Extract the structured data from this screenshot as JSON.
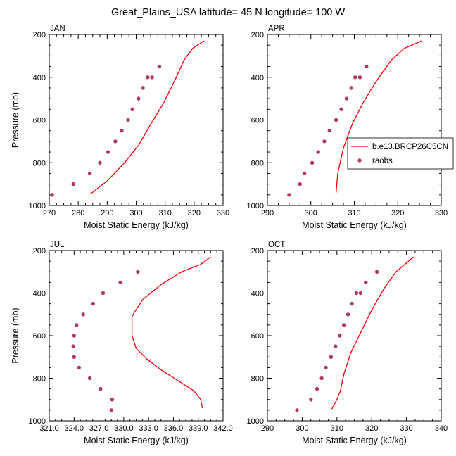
{
  "figure_title": "Great_Plains_USA  latitude= 45 N longitude= 100 W",
  "legend": {
    "model_label": "b.e13.BRCP26C5CN",
    "obs_label": "raobs",
    "model_color": "#ee0000",
    "obs_color": "#b03a5a"
  },
  "chart_data": [
    {
      "type": "scatter",
      "title": "JAN",
      "xlabel": "Moist Static Energy (kJ/kg)",
      "ylabel": "Pressure (mb)",
      "xlim": [
        270,
        330
      ],
      "ylim": [
        1000,
        200
      ],
      "x_ticks": [
        "270",
        "280",
        "290",
        "300",
        "310",
        "320",
        "330"
      ],
      "y_ticks": [
        "200",
        "400",
        "600",
        "800",
        "1000"
      ],
      "show_legend": false,
      "series": [
        {
          "name": "b.e13.BRCP26C5CN",
          "kind": "line",
          "x": [
            284.2,
            290.0,
            296.0,
            301.0,
            305.0,
            309.5,
            313.5,
            316.5,
            319.5,
            323.5
          ],
          "y": [
            946,
            885,
            800,
            715,
            620,
            520,
            410,
            320,
            265,
            230
          ]
        },
        {
          "name": "raobs",
          "kind": "points",
          "x": [
            271.0,
            278.3,
            284.0,
            287.5,
            290.3,
            292.8,
            295.0,
            297.2,
            298.7,
            300.8,
            302.3,
            304.0,
            305.5,
            308.0
          ],
          "y": [
            950,
            900,
            850,
            800,
            750,
            700,
            650,
            600,
            550,
            500,
            450,
            400,
            400,
            350
          ]
        }
      ]
    },
    {
      "type": "scatter",
      "title": "APR",
      "xlabel": "Moist Static Energy (kJ/kg)",
      "ylabel": "",
      "xlim": [
        290,
        330
      ],
      "ylim": [
        1000,
        200
      ],
      "x_ticks": [
        "290",
        "300",
        "310",
        "320",
        "330"
      ],
      "y_ticks": [
        "200",
        "400",
        "600",
        "800",
        "1000"
      ],
      "show_legend": true,
      "series": [
        {
          "name": "b.e13.BRCP26C5CN",
          "kind": "line",
          "x": [
            305.8,
            306.2,
            307.5,
            309.5,
            312.0,
            315.0,
            318.5,
            321.5,
            325.5
          ],
          "y": [
            940,
            850,
            730,
            620,
            520,
            420,
            320,
            265,
            230
          ]
        },
        {
          "name": "raobs",
          "kind": "points",
          "x": [
            295.0,
            297.5,
            298.5,
            300.3,
            301.7,
            303.1,
            304.3,
            305.8,
            307.0,
            308.2,
            309.3,
            310.2,
            311.3,
            312.8
          ],
          "y": [
            950,
            900,
            850,
            800,
            750,
            700,
            650,
            600,
            550,
            500,
            450,
            400,
            400,
            350
          ]
        }
      ]
    },
    {
      "type": "scatter",
      "title": "JUL",
      "xlabel": "Moist Static Energy (kJ/kg)",
      "ylabel": "Pressure (mb)",
      "xlim": [
        321,
        342
      ],
      "ylim": [
        1000,
        200
      ],
      "x_ticks": [
        "321.0",
        "324.0",
        "327.0",
        "330.0",
        "333.0",
        "336.0",
        "339.0",
        "342.0"
      ],
      "y_ticks": [
        "200",
        "400",
        "600",
        "800",
        "1000"
      ],
      "show_legend": false,
      "series": [
        {
          "name": "b.e13.BRCP26C5CN",
          "kind": "line",
          "x": [
            339.5,
            339.3,
            338.5,
            336.5,
            334.5,
            332.8,
            331.5,
            331.0,
            331.0,
            331.3,
            332.3,
            334.5,
            337.0,
            339.3,
            340.5
          ],
          "y": [
            940,
            900,
            860,
            810,
            760,
            710,
            660,
            600,
            510,
            490,
            430,
            360,
            300,
            265,
            230
          ]
        },
        {
          "name": "raobs",
          "kind": "points",
          "x": [
            328.5,
            328.6,
            327.2,
            325.9,
            324.6,
            324.0,
            323.9,
            324.0,
            324.3,
            325.1,
            326.3,
            327.5,
            329.6,
            331.7
          ],
          "y": [
            950,
            900,
            850,
            800,
            750,
            700,
            650,
            600,
            550,
            500,
            450,
            400,
            350,
            300
          ]
        }
      ]
    },
    {
      "type": "scatter",
      "title": "OCT",
      "xlabel": "Moist Static Energy (kJ/kg)",
      "ylabel": "",
      "xlim": [
        290,
        340
      ],
      "ylim": [
        1000,
        200
      ],
      "x_ticks": [
        "290",
        "300",
        "310",
        "320",
        "330",
        "340"
      ],
      "y_ticks": [
        "200",
        "400",
        "600",
        "800",
        "1000"
      ],
      "show_legend": false,
      "series": [
        {
          "name": "b.e13.BRCP26C5CN",
          "kind": "line",
          "x": [
            308.5,
            310.0,
            311.0,
            312.0,
            314.0,
            317.0,
            320.0,
            323.5,
            327.0,
            329.5,
            332.0
          ],
          "y": [
            945,
            900,
            860,
            780,
            680,
            580,
            480,
            380,
            300,
            265,
            230
          ]
        },
        {
          "name": "raobs",
          "kind": "points",
          "x": [
            298.5,
            302.5,
            304.3,
            305.6,
            306.8,
            308.3,
            309.6,
            310.8,
            312.0,
            313.2,
            314.3,
            315.6,
            316.8,
            318.3,
            321.5
          ],
          "y": [
            950,
            900,
            850,
            800,
            750,
            700,
            650,
            600,
            550,
            500,
            450,
            400,
            400,
            350,
            300
          ]
        }
      ]
    }
  ]
}
